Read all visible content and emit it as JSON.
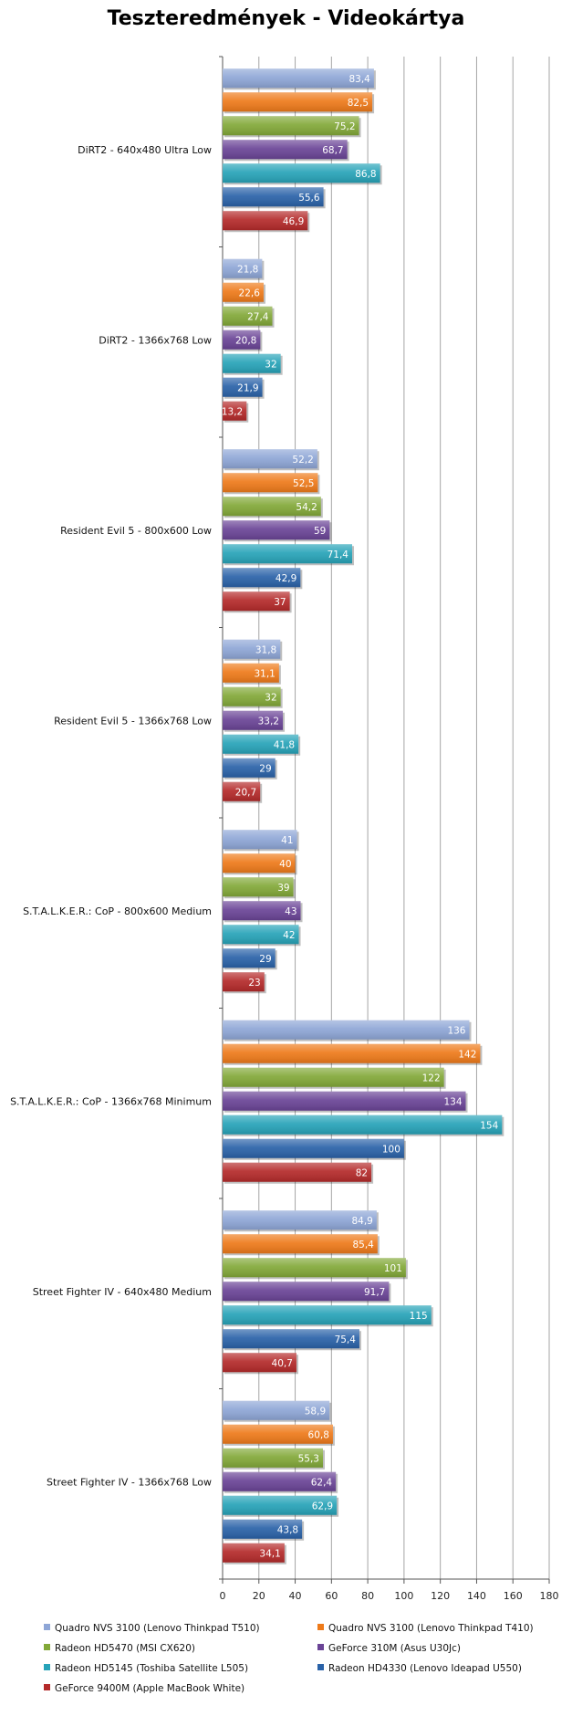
{
  "chart_data": {
    "type": "bar",
    "orientation": "horizontal",
    "title": "Teszteredmények - Videokártya",
    "categories": [
      "DiRT2 - 640x480 Ultra Low",
      "DiRT2 - 1366x768 Low",
      "Resident Evil 5 - 800x600 Low",
      "Resident Evil 5 - 1366x768 Low",
      "S.T.A.L.K.E.R.:  CoP - 800x600 Medium",
      "S.T.A.L.K.E.R.:  CoP - 1366x768 Minimum",
      "Street Fighter IV - 640x480 Medium",
      "Street Fighter IV - 1366x768 Low"
    ],
    "series": [
      {
        "name": "Quadro NVS 3100 (Lenovo Thinkpad T510)",
        "color": "#8ea6d6",
        "values": [
          83.4,
          21.8,
          52.2,
          31.8,
          41,
          136,
          84.9,
          58.9
        ],
        "labels": [
          "83,4",
          "21,8",
          "52,2",
          "31,8",
          "41",
          "136",
          "84,9",
          "58,9"
        ]
      },
      {
        "name": "Quadro NVS 3100 (Lenovo Thinkpad T410)",
        "color": "#ee7a1a",
        "values": [
          82.5,
          22.6,
          52.5,
          31.1,
          40,
          142,
          85.4,
          60.8
        ],
        "labels": [
          "82,5",
          "22,6",
          "52,5",
          "31,1",
          "40",
          "142",
          "85,4",
          "60,8"
        ]
      },
      {
        "name": "Radeon HD5470 (MSI CX620)",
        "color": "#82a838",
        "values": [
          75.2,
          27.4,
          54.2,
          32,
          39,
          122,
          101,
          55.3
        ],
        "labels": [
          "75,2",
          "27,4",
          "54,2",
          "32",
          "39",
          "122",
          "101",
          "55,3"
        ]
      },
      {
        "name": "GeForce 310M (Asus U30Jc)",
        "color": "#6a4496",
        "values": [
          68.7,
          20.8,
          59,
          33.2,
          43,
          134,
          91.7,
          62.4
        ],
        "labels": [
          "68,7",
          "20,8",
          "59",
          "33,2",
          "43",
          "134",
          "91,7",
          "62,4"
        ]
      },
      {
        "name": "Radeon HD5145 (Toshiba Satellite L505)",
        "color": "#27a3b8",
        "values": [
          86.8,
          32,
          71.4,
          41.8,
          42,
          154,
          115,
          62.9
        ],
        "labels": [
          "86,8",
          "32",
          "71,4",
          "41,8",
          "42",
          "154",
          "115",
          "62,9"
        ]
      },
      {
        "name": "Radeon HD4330 (Lenovo Ideapad U550)",
        "color": "#2a62a8",
        "values": [
          55.6,
          21.9,
          42.9,
          29,
          29,
          100,
          75.4,
          43.8
        ],
        "labels": [
          "55,6",
          "21,9",
          "42,9",
          "29",
          "29",
          "100",
          "75,4",
          "43,8"
        ]
      },
      {
        "name": "GeForce 9400M (Apple MacBook White)",
        "color": "#b42a2a",
        "values": [
          46.9,
          13.2,
          37,
          20.7,
          23,
          82,
          40.7,
          34.1
        ],
        "labels": [
          "46,9",
          "13,2",
          "37",
          "20,7",
          "23",
          "82",
          "40,7",
          "34,1"
        ]
      }
    ],
    "xlim": [
      0,
      180
    ],
    "xticks": [
      "0",
      "20",
      "40",
      "60",
      "80",
      "100",
      "120",
      "140",
      "160",
      "180"
    ],
    "grid": true,
    "legend_position": "bottom"
  }
}
